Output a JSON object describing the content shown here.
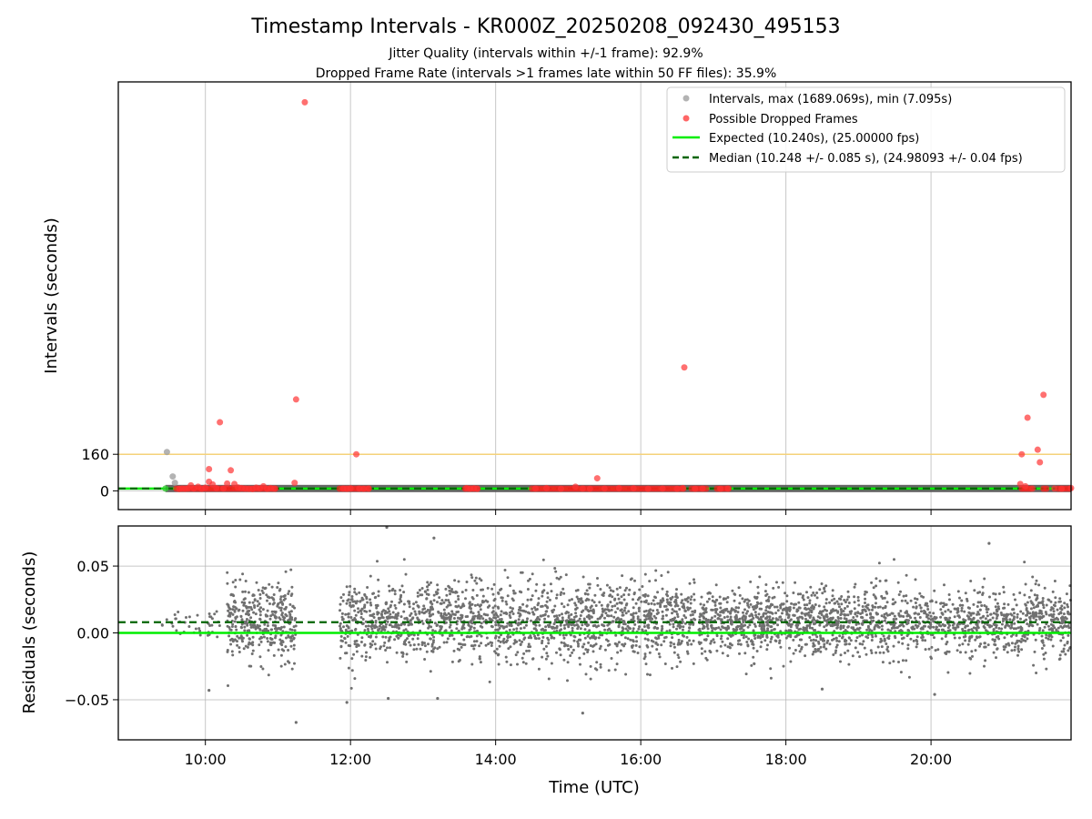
{
  "chart_data": {
    "type": "scatter",
    "title": "Timestamp Intervals - KR000Z_20250208_092430_495153",
    "subtitle_lines": [
      "Jitter Quality (intervals within +/-1 frame): 92.9%",
      "Dropped Frame Rate (intervals >1 frames late within 50 FF files): 35.9%"
    ],
    "x_axis": {
      "label": "Time (UTC)",
      "range_hours": [
        8.8,
        21.93
      ],
      "ticks": [
        {
          "value": 10,
          "label": "10:00"
        },
        {
          "value": 12,
          "label": "12:00"
        },
        {
          "value": 14,
          "label": "14:00"
        },
        {
          "value": 16,
          "label": "16:00"
        },
        {
          "value": 18,
          "label": "18:00"
        },
        {
          "value": 20,
          "label": "20:00"
        }
      ]
    },
    "top_panel": {
      "ylabel": "Intervals (seconds)",
      "ylim": [
        -82,
        1789
      ],
      "yticks": [
        {
          "value": 0,
          "label": "0"
        },
        {
          "value": 160,
          "label": "160"
        }
      ],
      "threshold_line": 160,
      "threshold_color": "#f5d27a",
      "expected_value": 10.24,
      "median_value": 10.248,
      "band_color": "#555555",
      "legend": [
        {
          "label": "Intervals, max (1689.069s), min (7.095s)",
          "kind": "dot",
          "color": "#999999"
        },
        {
          "label": "Possible Dropped Frames",
          "kind": "dot",
          "color": "#ff3333"
        },
        {
          "label": "Expected (10.240s), (25.00000 fps)",
          "kind": "line",
          "color": "#00ee00"
        },
        {
          "label": "Median (10.248 +/- 0.085 s), (24.98093 +/- 0.04 fps)",
          "kind": "dashed",
          "color": "#006400"
        }
      ],
      "gray_outliers": [
        {
          "x": 9.47,
          "y": 170
        },
        {
          "x": 9.55,
          "y": 63
        },
        {
          "x": 9.58,
          "y": 35
        }
      ],
      "dropped_frames": [
        {
          "x": 9.64,
          "y": 8
        },
        {
          "x": 9.68,
          "y": 10
        },
        {
          "x": 9.72,
          "y": 9
        },
        {
          "x": 9.76,
          "y": 11
        },
        {
          "x": 9.8,
          "y": 24
        },
        {
          "x": 9.84,
          "y": 10
        },
        {
          "x": 9.9,
          "y": 18
        },
        {
          "x": 9.95,
          "y": 9
        },
        {
          "x": 10.0,
          "y": 14
        },
        {
          "x": 10.05,
          "y": 95
        },
        {
          "x": 10.05,
          "y": 40
        },
        {
          "x": 10.1,
          "y": 28
        },
        {
          "x": 10.15,
          "y": 12
        },
        {
          "x": 10.2,
          "y": 300
        },
        {
          "x": 10.25,
          "y": 10
        },
        {
          "x": 10.3,
          "y": 32
        },
        {
          "x": 10.35,
          "y": 90
        },
        {
          "x": 10.4,
          "y": 30
        },
        {
          "x": 10.45,
          "y": 15
        },
        {
          "x": 10.5,
          "y": 12
        },
        {
          "x": 10.55,
          "y": 10
        },
        {
          "x": 10.6,
          "y": 9
        },
        {
          "x": 10.65,
          "y": 8
        },
        {
          "x": 10.7,
          "y": 14
        },
        {
          "x": 10.75,
          "y": 11
        },
        {
          "x": 10.8,
          "y": 20
        },
        {
          "x": 10.85,
          "y": 9
        },
        {
          "x": 10.9,
          "y": 12
        },
        {
          "x": 10.95,
          "y": 10
        },
        {
          "x": 11.23,
          "y": 35
        },
        {
          "x": 11.25,
          "y": 400
        },
        {
          "x": 11.37,
          "y": 1700
        },
        {
          "x": 11.9,
          "y": 10
        },
        {
          "x": 11.95,
          "y": 9
        },
        {
          "x": 12.0,
          "y": 11
        },
        {
          "x": 12.08,
          "y": 160
        },
        {
          "x": 12.12,
          "y": 10
        },
        {
          "x": 12.18,
          "y": 9
        },
        {
          "x": 12.25,
          "y": 10
        },
        {
          "x": 13.6,
          "y": 12
        },
        {
          "x": 13.65,
          "y": 10
        },
        {
          "x": 13.7,
          "y": 11
        },
        {
          "x": 13.75,
          "y": 9
        },
        {
          "x": 14.55,
          "y": 10
        },
        {
          "x": 14.7,
          "y": 12
        },
        {
          "x": 14.9,
          "y": 9
        },
        {
          "x": 15.1,
          "y": 18
        },
        {
          "x": 15.2,
          "y": 10
        },
        {
          "x": 15.3,
          "y": 9
        },
        {
          "x": 15.4,
          "y": 55
        },
        {
          "x": 15.5,
          "y": 10
        },
        {
          "x": 15.7,
          "y": 12
        },
        {
          "x": 15.9,
          "y": 11
        },
        {
          "x": 16.1,
          "y": 9
        },
        {
          "x": 16.3,
          "y": 10
        },
        {
          "x": 16.5,
          "y": 9
        },
        {
          "x": 16.58,
          "y": 12
        },
        {
          "x": 16.6,
          "y": 540
        },
        {
          "x": 16.75,
          "y": 9
        },
        {
          "x": 16.85,
          "y": 10
        },
        {
          "x": 17.1,
          "y": 9
        },
        {
          "x": 17.2,
          "y": 10
        },
        {
          "x": 21.23,
          "y": 30
        },
        {
          "x": 21.25,
          "y": 160
        },
        {
          "x": 21.3,
          "y": 20
        },
        {
          "x": 21.33,
          "y": 320
        },
        {
          "x": 21.4,
          "y": 10
        },
        {
          "x": 21.47,
          "y": 180
        },
        {
          "x": 21.5,
          "y": 125
        },
        {
          "x": 21.55,
          "y": 420
        },
        {
          "x": 21.7,
          "y": 10
        },
        {
          "x": 21.8,
          "y": 9
        },
        {
          "x": 21.93,
          "y": 12
        }
      ],
      "dense_dropped_segments": [
        [
          9.6,
          11.0
        ],
        [
          11.85,
          12.28
        ],
        [
          13.58,
          13.78
        ],
        [
          14.5,
          16.6
        ],
        [
          16.7,
          16.92
        ],
        [
          17.05,
          17.25
        ],
        [
          21.25,
          21.4
        ],
        [
          21.55,
          21.62
        ],
        [
          21.75,
          21.93
        ]
      ]
    },
    "bottom_panel": {
      "ylabel": "Residuals (seconds)",
      "ylim": [
        -0.08,
        0.08
      ],
      "yticks": [
        {
          "value": 0.05,
          "label": "0.05"
        },
        {
          "value": 0.0,
          "label": "0.00"
        },
        {
          "value": -0.05,
          "label": "−0.05"
        }
      ],
      "expected_residual": 0.0,
      "median_residual": 0.008,
      "point_color": "#707070",
      "segments": [
        {
          "x_start": 9.4,
          "x_end": 10.2,
          "n": 40,
          "spread": 0.01
        },
        {
          "x_start": 10.3,
          "x_end": 11.25,
          "n": 380,
          "spread": 0.022
        },
        {
          "x_start": 11.85,
          "x_end": 16.75,
          "n": 1700,
          "spread": 0.024
        },
        {
          "x_start": 16.8,
          "x_end": 21.0,
          "n": 1500,
          "spread": 0.02
        },
        {
          "x_start": 21.0,
          "x_end": 21.93,
          "n": 320,
          "spread": 0.022
        }
      ],
      "outliers": [
        {
          "x": 11.25,
          "y": -0.067
        },
        {
          "x": 12.5,
          "y": 0.079
        },
        {
          "x": 13.15,
          "y": 0.071
        },
        {
          "x": 11.95,
          "y": -0.052
        },
        {
          "x": 15.2,
          "y": -0.06
        },
        {
          "x": 20.8,
          "y": 0.067
        },
        {
          "x": 12.52,
          "y": -0.049
        },
        {
          "x": 13.2,
          "y": -0.049
        },
        {
          "x": 10.05,
          "y": -0.043
        },
        {
          "x": 18.5,
          "y": -0.042
        },
        {
          "x": 20.05,
          "y": -0.046
        }
      ]
    }
  }
}
